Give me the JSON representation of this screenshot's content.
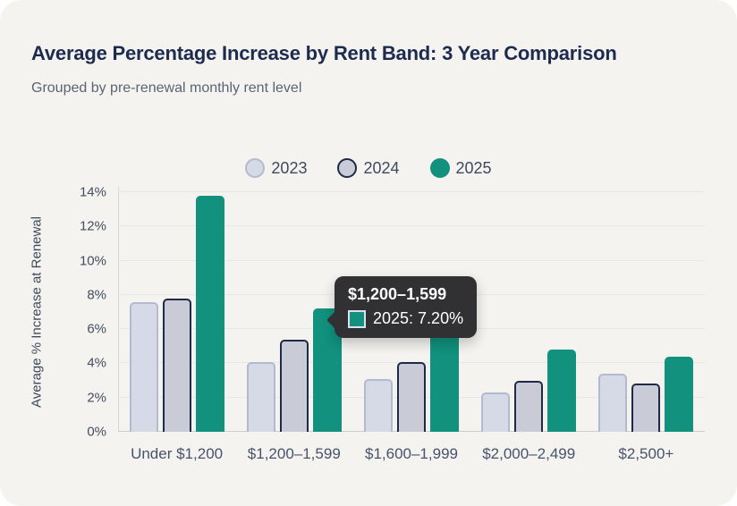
{
  "header": {
    "title": "Average Percentage Increase by Rent Band: 3 Year Comparison",
    "subtitle": "Grouped by pre-renewal monthly rent level"
  },
  "chart_data": {
    "type": "bar",
    "title": "Average Percentage Increase by Rent Band: 3 Year Comparison",
    "subtitle": "Grouped by pre-renewal monthly rent level",
    "categories": [
      "Under $1,200",
      "$1,200–1,599",
      "$1,600–1,999",
      "$2,000–2,499",
      "$2,500+"
    ],
    "series": [
      {
        "name": "2023",
        "values": [
          7.6,
          4.1,
          3.1,
          2.3,
          3.4
        ],
        "fill": "#d6dae7",
        "border": "#b2bacf"
      },
      {
        "name": "2024",
        "values": [
          7.8,
          5.4,
          4.1,
          3.0,
          2.8
        ],
        "fill": "#c9ccd6",
        "border": "#1e2a47"
      },
      {
        "name": "2025",
        "values": [
          13.8,
          7.2,
          5.8,
          4.8,
          4.4
        ],
        "fill": "#11917e",
        "border": "#11917e"
      }
    ],
    "xlabel": "",
    "ylabel": "Average % Increase at Renewal",
    "ylim": [
      0,
      14
    ],
    "ytick_step": 2,
    "ytick_labels": [
      "0%",
      "2%",
      "4%",
      "6%",
      "8%",
      "10%",
      "12%",
      "14%"
    ],
    "grid": true,
    "legend_position": "top",
    "legend_labels": [
      "2023",
      "2024",
      "2025"
    ]
  },
  "tooltip": {
    "title": "$1,200–1,599",
    "value_label": "2025: 7.20%",
    "swatch_color": "#11917e"
  },
  "colors": {
    "card_bg": "#f4f3f0",
    "accent_teal": "#11917e",
    "title_text": "#1d2b4f",
    "subtitle_text": "#5a6474",
    "tooltip_bg": "#313133"
  }
}
